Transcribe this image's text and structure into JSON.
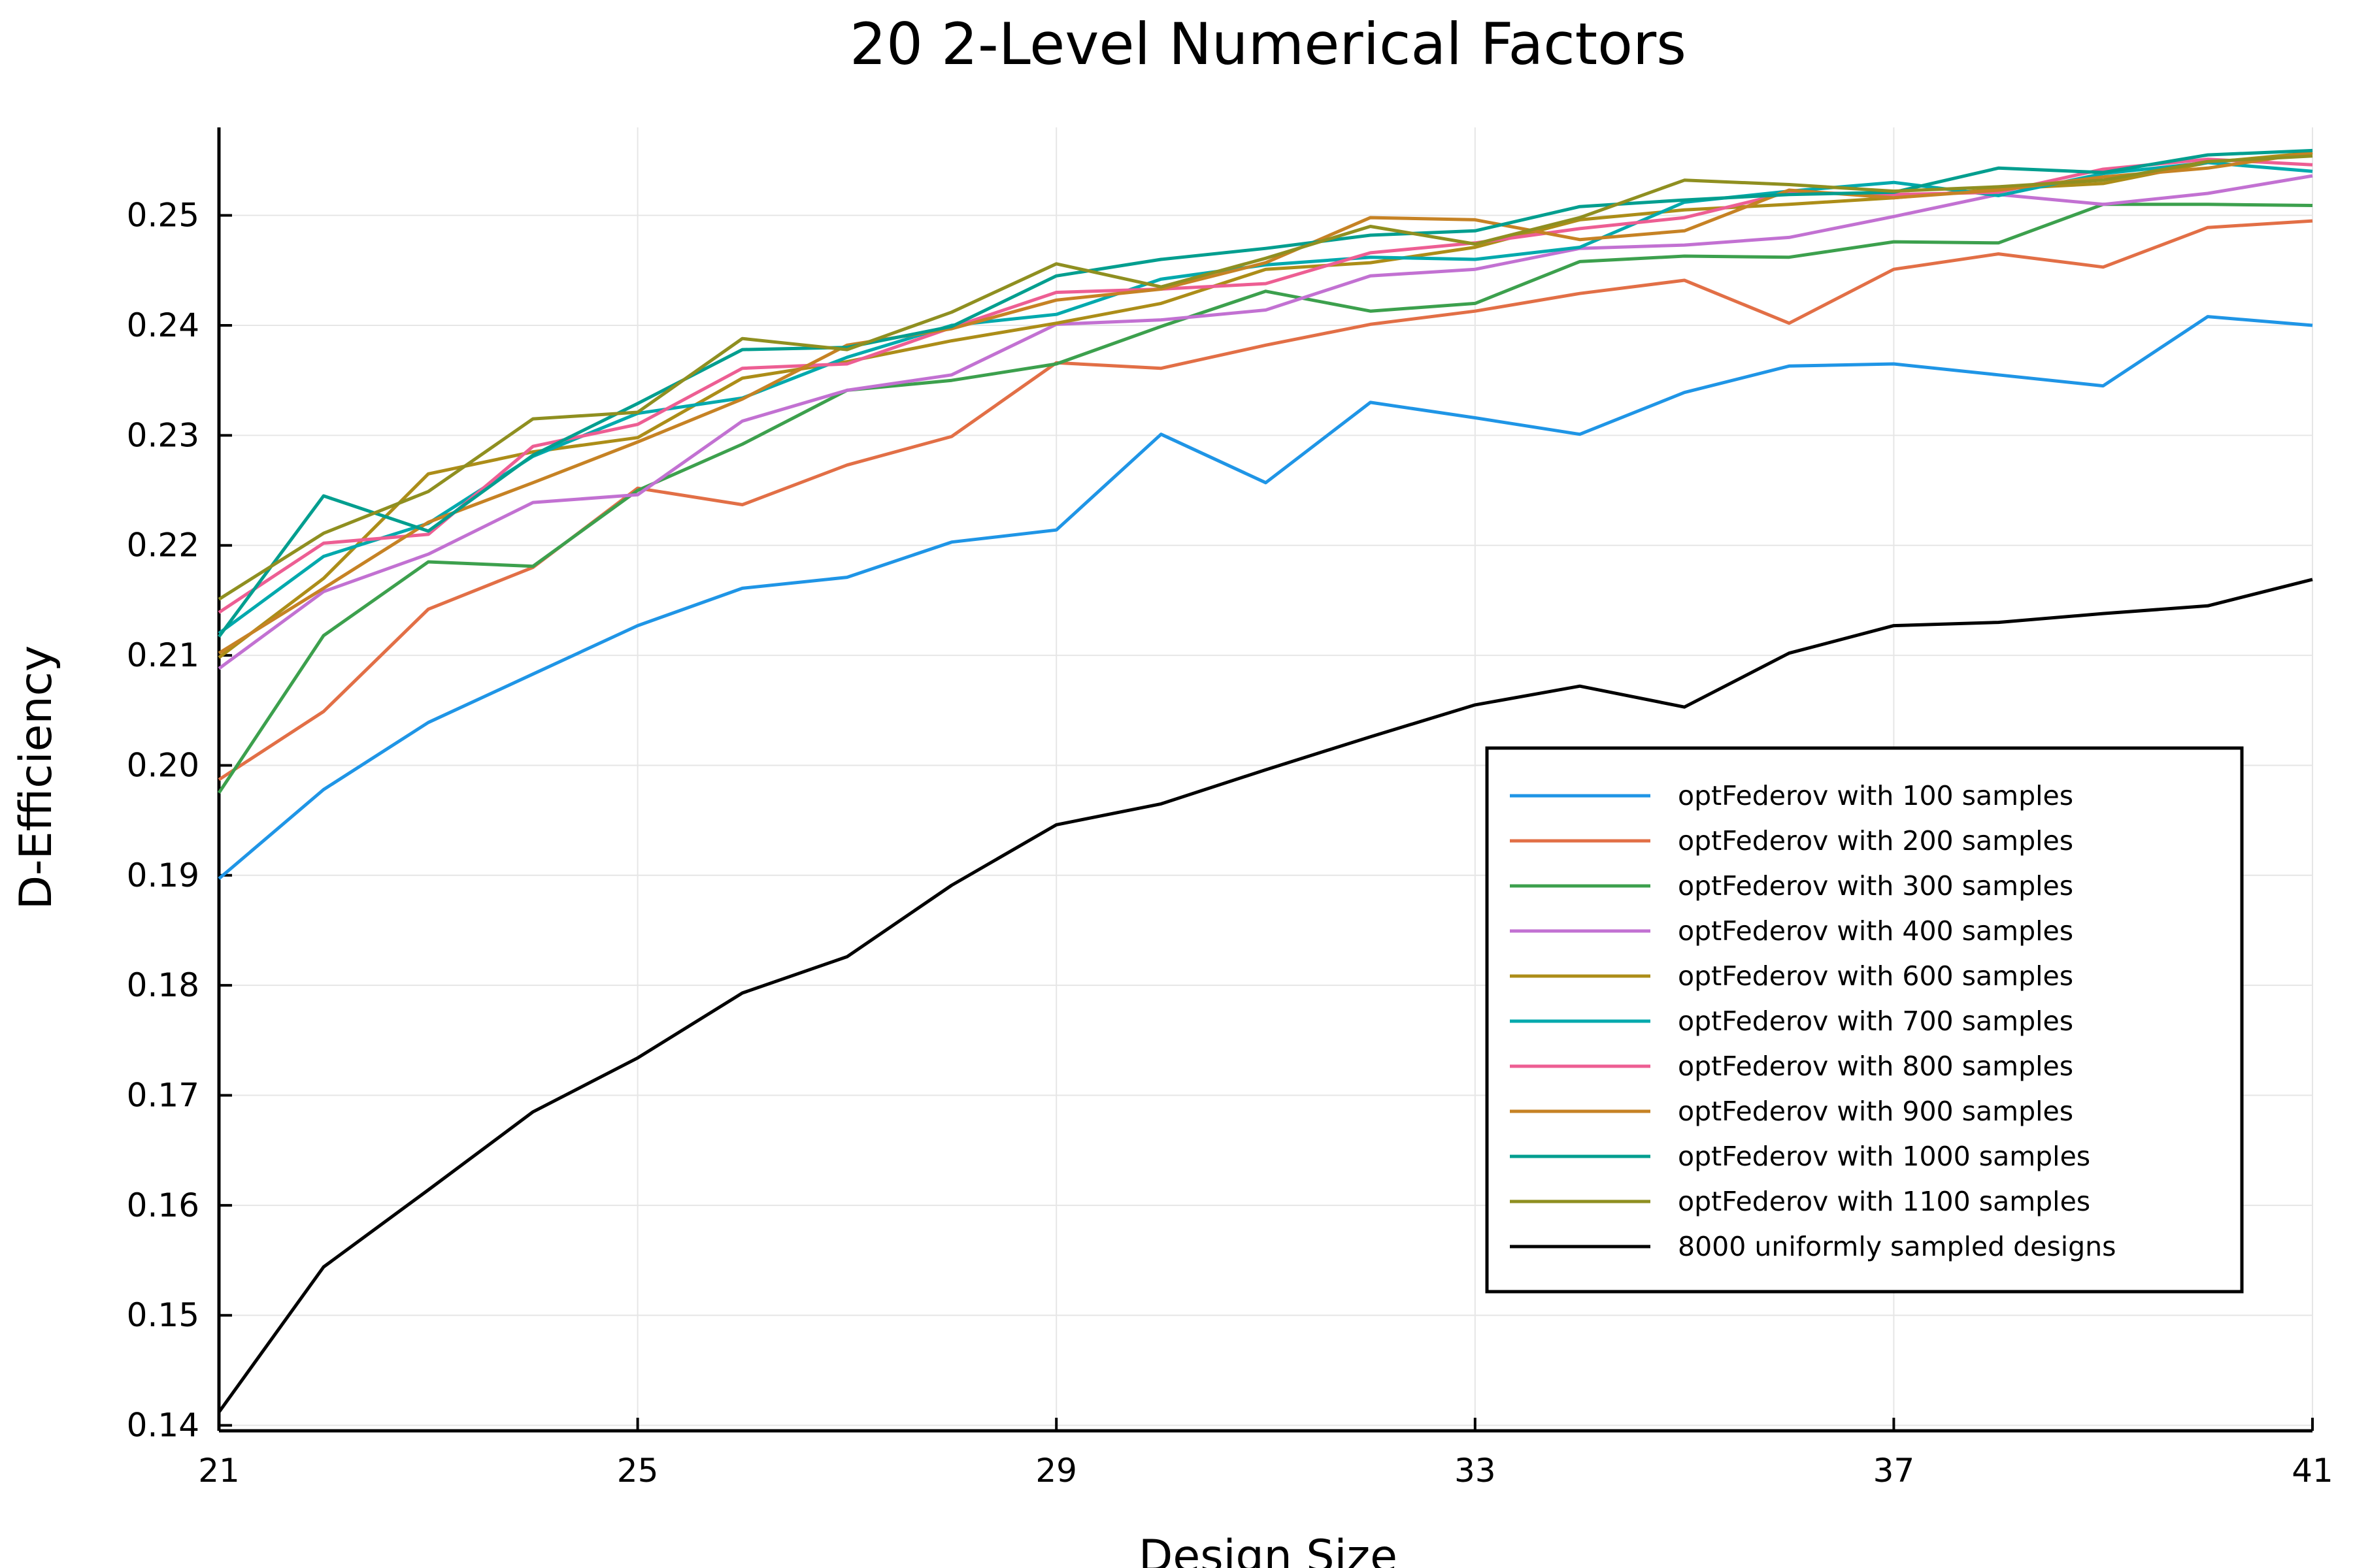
{
  "chart_data": {
    "type": "line",
    "title": "20 2-Level Numerical Factors",
    "xlabel": "Design Size",
    "ylabel": "D-Efficiency",
    "xlim": [
      21,
      41
    ],
    "ylim": [
      0.1395,
      0.258
    ],
    "xticks": [
      21,
      25,
      29,
      33,
      37,
      41
    ],
    "xtick_labels": [
      "21",
      "25",
      "29",
      "33",
      "37",
      "41"
    ],
    "yticks": [
      0.14,
      0.15,
      0.16,
      0.17,
      0.18,
      0.19,
      0.2,
      0.21,
      0.22,
      0.23,
      0.24,
      0.25
    ],
    "ytick_labels": [
      "0.14",
      "0.15",
      "0.16",
      "0.17",
      "0.18",
      "0.19",
      "0.20",
      "0.21",
      "0.22",
      "0.23",
      "0.24",
      "0.25"
    ],
    "grid": true,
    "legend_position": "bottom-right",
    "x": [
      21,
      22,
      23,
      24,
      25,
      26,
      27,
      28,
      29,
      30,
      31,
      32,
      33,
      34,
      35,
      36,
      37,
      38,
      39,
      40,
      41
    ],
    "series": [
      {
        "name": "optFederov with 100 samples",
        "color": "#1f95e6",
        "values": [
          0.1897,
          0.1978,
          0.2039,
          0.2083,
          0.2127,
          0.2161,
          0.2171,
          0.2203,
          0.2214,
          0.2301,
          0.2257,
          0.233,
          0.2316,
          0.2301,
          0.2339,
          0.2363,
          0.2365,
          0.2355,
          0.2345,
          0.2408,
          0.24
        ]
      },
      {
        "name": "optFederov with 200 samples",
        "color": "#e26f46",
        "values": [
          0.1987,
          0.2049,
          0.2142,
          0.218,
          0.2252,
          0.2237,
          0.2273,
          0.2299,
          0.2366,
          0.2361,
          0.2382,
          0.2401,
          0.2413,
          0.2429,
          0.2441,
          0.2402,
          0.2451,
          0.2465,
          0.2453,
          0.2489,
          0.2495
        ]
      },
      {
        "name": "optFederov with 300 samples",
        "color": "#3ca04d",
        "values": [
          0.1975,
          0.2118,
          0.2185,
          0.2181,
          0.225,
          0.2292,
          0.2341,
          0.235,
          0.2365,
          0.2399,
          0.2431,
          0.2413,
          0.242,
          0.2458,
          0.2463,
          0.2462,
          0.2476,
          0.2475,
          0.251,
          0.251,
          0.2509
        ]
      },
      {
        "name": "optFederov with 400 samples",
        "color": "#c271d2",
        "values": [
          0.2088,
          0.2158,
          0.2192,
          0.2239,
          0.2246,
          0.2313,
          0.2341,
          0.2355,
          0.2401,
          0.2405,
          0.2414,
          0.2445,
          0.2451,
          0.247,
          0.2473,
          0.248,
          0.2499,
          0.2519,
          0.251,
          0.252,
          0.2536
        ]
      },
      {
        "name": "optFederov with 600 samples",
        "color": "#ac8d18",
        "values": [
          0.2098,
          0.217,
          0.2265,
          0.2285,
          0.2298,
          0.2352,
          0.2367,
          0.2386,
          0.2402,
          0.242,
          0.2451,
          0.2457,
          0.2471,
          0.2496,
          0.2505,
          0.251,
          0.2516,
          0.2524,
          0.2529,
          0.2548,
          0.2557
        ]
      },
      {
        "name": "optFederov with 700 samples",
        "color": "#00a9ad",
        "values": [
          0.212,
          0.219,
          0.222,
          0.2281,
          0.232,
          0.2334,
          0.2371,
          0.24,
          0.241,
          0.2442,
          0.2455,
          0.2462,
          0.246,
          0.2471,
          0.2512,
          0.2522,
          0.253,
          0.2518,
          0.2538,
          0.2548,
          0.254
        ]
      },
      {
        "name": "optFederov with 800 samples",
        "color": "#ed5e93",
        "values": [
          0.2139,
          0.2202,
          0.221,
          0.229,
          0.231,
          0.2361,
          0.2365,
          0.2398,
          0.243,
          0.2433,
          0.2438,
          0.2466,
          0.2475,
          0.2488,
          0.2498,
          0.2521,
          0.2519,
          0.2521,
          0.2542,
          0.2551,
          0.2546
        ]
      },
      {
        "name": "optFederov with 900 samples",
        "color": "#c68224",
        "values": [
          0.2102,
          0.2161,
          0.2221,
          0.2257,
          0.2294,
          0.2333,
          0.2382,
          0.2397,
          0.2423,
          0.2433,
          0.2457,
          0.2498,
          0.2496,
          0.2478,
          0.2486,
          0.2523,
          0.2516,
          0.2523,
          0.2535,
          0.2543,
          0.2557
        ]
      },
      {
        "name": "optFederov with 1000 samples",
        "color": "#009e8f",
        "values": [
          0.2117,
          0.2245,
          0.2213,
          0.2282,
          0.2329,
          0.2378,
          0.238,
          0.2399,
          0.2445,
          0.246,
          0.247,
          0.2482,
          0.2486,
          0.2508,
          0.2514,
          0.2519,
          0.2521,
          0.2543,
          0.2539,
          0.2555,
          0.2559
        ]
      },
      {
        "name": "optFederov with 1100 samples",
        "color": "#8f8f20",
        "values": [
          0.2151,
          0.2211,
          0.2249,
          0.2315,
          0.2321,
          0.2388,
          0.2378,
          0.2412,
          0.2456,
          0.2435,
          0.2461,
          0.249,
          0.2474,
          0.2498,
          0.2532,
          0.2528,
          0.2522,
          0.2526,
          0.2532,
          0.2549,
          0.2554
        ]
      },
      {
        "name": "8000 uniformly sampled designs",
        "color": "#000000",
        "values": [
          0.1412,
          0.1544,
          0.1614,
          0.1685,
          0.1734,
          0.1793,
          0.1826,
          0.1891,
          0.1946,
          0.1965,
          0.1996,
          0.2026,
          0.2055,
          0.2072,
          0.2053,
          0.2102,
          0.2127,
          0.213,
          0.2138,
          0.2145,
          0.2169
        ]
      }
    ]
  }
}
